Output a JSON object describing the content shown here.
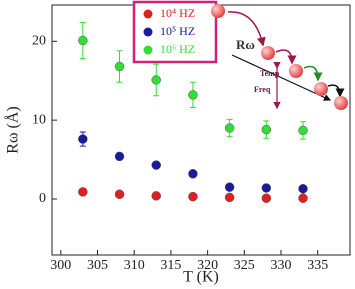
{
  "chart_data": {
    "type": "scatter",
    "x_label": "T (K)",
    "y_label": "Rω (Å)",
    "xlim": [
      298.8,
      339.4
    ],
    "ylim": [
      -7.1,
      24.6
    ],
    "xticks": [
      300,
      305,
      310,
      315,
      320,
      325,
      330,
      335
    ],
    "yticks": [
      0,
      10,
      20
    ],
    "legend": "top-center",
    "series": [
      {
        "name": "10⁴ HZ",
        "color": "#e02020",
        "x": [
          303,
          308,
          313,
          318,
          323,
          328,
          333
        ],
        "values": [
          0.9,
          0.6,
          0.4,
          0.3,
          0.2,
          0.1,
          0.1
        ],
        "errors": [
          0.2,
          0.2,
          0.2,
          0.2,
          0.1,
          0.1,
          0.1
        ]
      },
      {
        "name": "10⁵ HZ",
        "color": "#1a1a9a",
        "x": [
          303,
          308,
          313,
          318,
          323,
          328,
          333
        ],
        "values": [
          7.6,
          5.4,
          4.3,
          3.2,
          1.5,
          1.4,
          1.3
        ],
        "errors": [
          0.9,
          0.4,
          0.4,
          0.3,
          0.2,
          0.2,
          0.2
        ]
      },
      {
        "name": "10⁶ HZ",
        "color": "#33dd33",
        "x": [
          303,
          308,
          313,
          318,
          323,
          328,
          333
        ],
        "values": [
          20.1,
          16.8,
          15.1,
          13.2,
          9.0,
          8.8,
          8.7
        ],
        "errors": [
          2.3,
          2.0,
          2.0,
          1.6,
          1.1,
          1.1,
          1.1
        ]
      }
    ],
    "annotations": [
      "Rω",
      "Temp",
      "Freq"
    ]
  }
}
